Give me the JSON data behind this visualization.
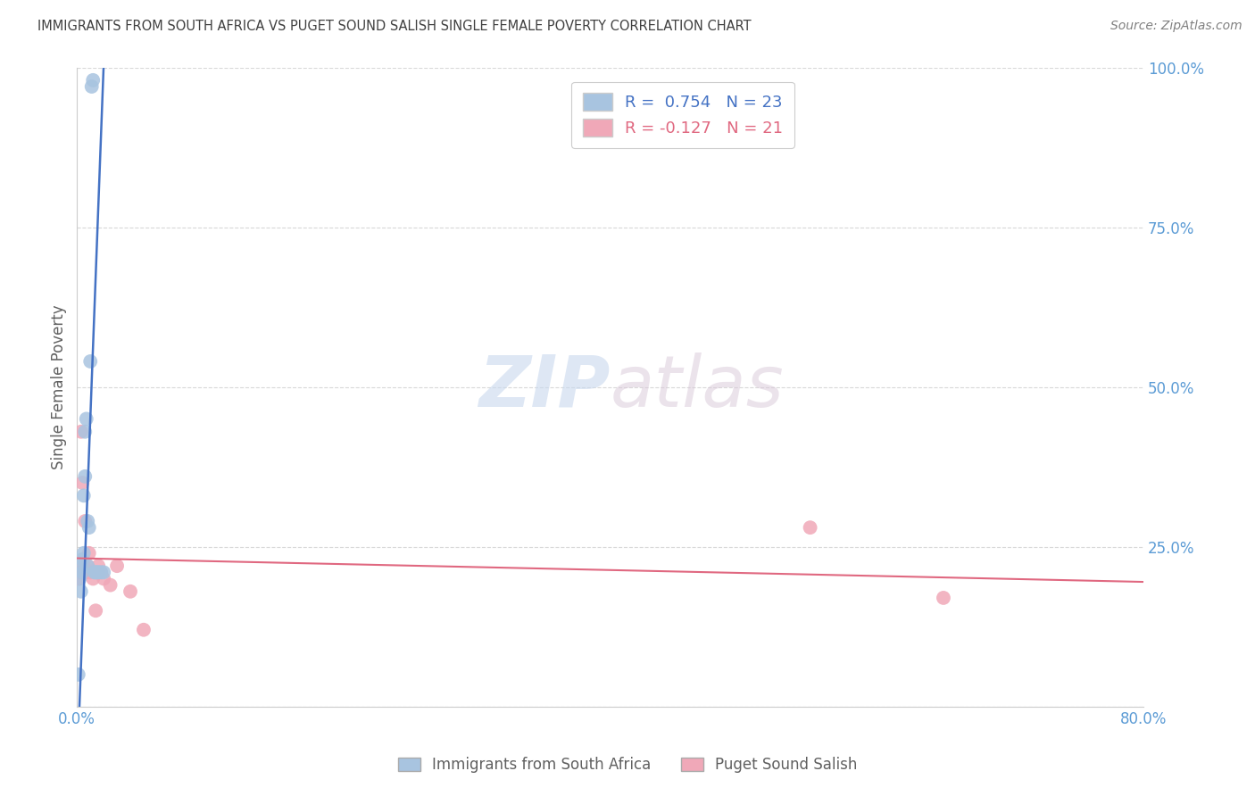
{
  "title": "IMMIGRANTS FROM SOUTH AFRICA VS PUGET SOUND SALISH SINGLE FEMALE POVERTY CORRELATION CHART",
  "source": "Source: ZipAtlas.com",
  "ylabel": "Single Female Poverty",
  "xlim": [
    0.0,
    0.8
  ],
  "ylim": [
    0.0,
    1.0
  ],
  "xticks": [
    0.0,
    0.2,
    0.4,
    0.6,
    0.8
  ],
  "xticklabels": [
    "0.0%",
    "",
    "",
    "",
    "80.0%"
  ],
  "yticks": [
    0.0,
    0.25,
    0.5,
    0.75,
    1.0
  ],
  "yticklabels": [
    "",
    "25.0%",
    "50.0%",
    "75.0%",
    "100.0%"
  ],
  "blue_r": 0.754,
  "blue_n": 23,
  "pink_r": -0.127,
  "pink_n": 21,
  "blue_color": "#a8c4e0",
  "pink_color": "#f0a8b8",
  "blue_line_color": "#4472c4",
  "pink_line_color": "#e06880",
  "legend_label_blue": "Immigrants from South Africa",
  "legend_label_pink": "Puget Sound Salish",
  "watermark_zip": "ZIP",
  "watermark_atlas": "atlas",
  "blue_scatter_x": [
    0.001,
    0.002,
    0.003,
    0.003,
    0.004,
    0.004,
    0.005,
    0.005,
    0.006,
    0.006,
    0.007,
    0.008,
    0.008,
    0.009,
    0.01,
    0.011,
    0.012,
    0.013,
    0.014,
    0.015,
    0.016,
    0.018,
    0.02
  ],
  "blue_scatter_y": [
    0.05,
    0.2,
    0.18,
    0.22,
    0.21,
    0.23,
    0.24,
    0.33,
    0.36,
    0.43,
    0.45,
    0.22,
    0.29,
    0.28,
    0.54,
    0.97,
    0.98,
    0.21,
    0.21,
    0.21,
    0.21,
    0.21,
    0.21
  ],
  "pink_scatter_x": [
    0.001,
    0.002,
    0.003,
    0.004,
    0.005,
    0.006,
    0.007,
    0.008,
    0.009,
    0.01,
    0.012,
    0.014,
    0.016,
    0.018,
    0.02,
    0.025,
    0.03,
    0.04,
    0.05,
    0.55,
    0.65
  ],
  "pink_scatter_y": [
    0.2,
    0.21,
    0.43,
    0.35,
    0.22,
    0.29,
    0.21,
    0.22,
    0.24,
    0.21,
    0.2,
    0.15,
    0.22,
    0.21,
    0.2,
    0.19,
    0.22,
    0.18,
    0.12,
    0.28,
    0.17
  ],
  "blue_line_x": [
    0.0,
    0.021
  ],
  "blue_line_y": [
    -0.1,
    1.06
  ],
  "pink_line_x": [
    0.0,
    0.8
  ],
  "pink_line_y": [
    0.232,
    0.195
  ],
  "background_color": "#ffffff",
  "grid_color": "#d8d8d8",
  "tick_color": "#5b9bd5",
  "title_color": "#404040",
  "source_color": "#808080",
  "ylabel_color": "#606060"
}
